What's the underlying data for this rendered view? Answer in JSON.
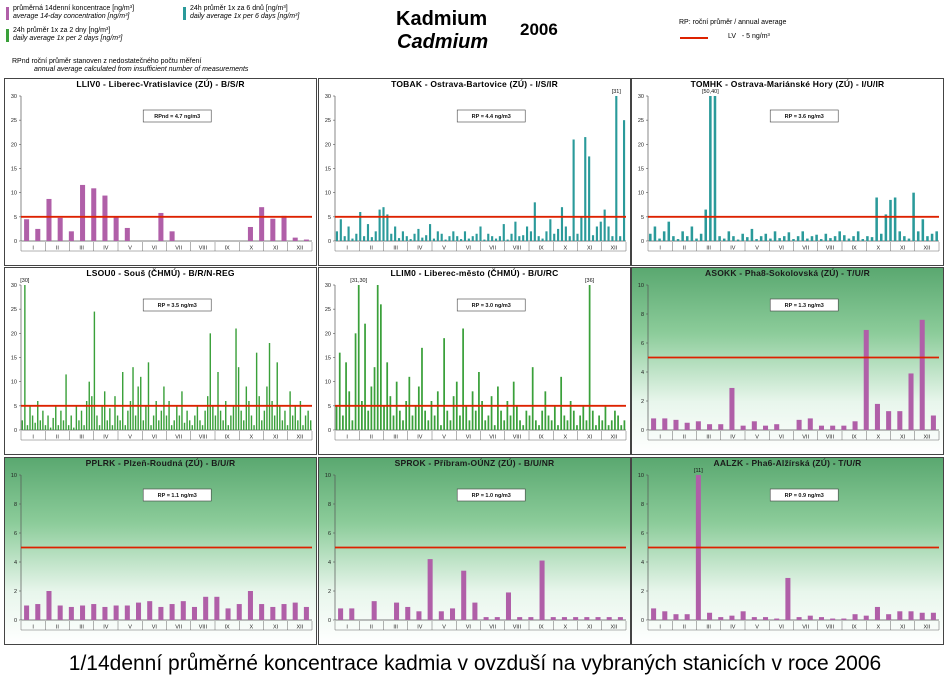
{
  "header": {
    "legend_bar_line1": "průměrná 14denní koncentrace [ng/m³]",
    "legend_bar_line2": "average 14-day concentration [ng/m³]",
    "legend_green_line1": "24h průměr 1x za 2 dny [ng/m³]",
    "legend_green_line2": "daily average 1x per 2 days [ng/m³]",
    "legend_teal_line1": "24h průměr 1x za 6 dnů [ng/m³]",
    "legend_teal_line2": "daily average 1x per 6 days [ng/m³]",
    "title_cz": "Kadmium",
    "title_en": "Cadmium",
    "year": "2006",
    "rp_label": "RP: roční průměr / annual average",
    "lv_label": "LV   - 5 ng/m³",
    "rpnd_line1": "RPnd  roční průměr stanoven z nedostatečného počtu měření",
    "rpnd_line2": "annual average calculated from insufficient number of measurements",
    "colors": {
      "bar": "#b05fa8",
      "daily_green": "#3aa03a",
      "daily_teal": "#2a9a9a",
      "limit": "#dd2200"
    }
  },
  "caption": "1/14denní průměrné koncentrace kadmia v ovzduší na vybraných stanicích v roce 2006",
  "chart_data": [
    {
      "type": "bar",
      "title": "LLIV0 - Liberec-Vratislavice (ZÚ) - B/S/R",
      "annotation": "RPnd = 4.7 ng/m3",
      "limit": 5,
      "ylim": [
        0,
        30
      ],
      "yticks": [
        0,
        5,
        10,
        15,
        20,
        25,
        30
      ],
      "months": [
        "I",
        "II",
        "III",
        "IV",
        "V",
        "VI",
        "VII",
        "VIII",
        "IX",
        "X",
        "XI",
        "XII"
      ],
      "values": [
        4.5,
        2.5,
        8.7,
        4.8,
        2.0,
        11.6,
        10.9,
        9.4,
        4.9,
        2.7,
        0,
        0,
        5.8,
        2.0,
        0,
        0,
        0,
        0,
        0,
        0,
        2.9,
        7.0,
        4.6,
        5.2,
        0.7,
        0.3
      ],
      "color": "#b05fa8",
      "green_bg": false
    },
    {
      "type": "bar",
      "title": "TOBAK - Ostrava-Bartovice (ZÚ) - I/S/IR",
      "annotation": "RP = 4.4 ng/m3",
      "limit": 5,
      "ylim": [
        0,
        30
      ],
      "yticks": [
        0,
        5,
        10,
        15,
        20,
        25,
        30
      ],
      "months": [
        "I",
        "II",
        "III",
        "IV",
        "V",
        "VI",
        "VII",
        "VIII",
        "IX",
        "X",
        "XI",
        "XII"
      ],
      "values": [
        2,
        4.5,
        1,
        3,
        0.5,
        1.5,
        6,
        1,
        3.5,
        0.8,
        2,
        6.5,
        7,
        5.5,
        1.5,
        3,
        0.6,
        2,
        1,
        0.4,
        1.5,
        2.5,
        0.7,
        1.2,
        3.5,
        0.5,
        2,
        1.5,
        0.3,
        1,
        2,
        1,
        0.4,
        2,
        0.5,
        1,
        1.5,
        3,
        0.3,
        1.5,
        1,
        0.5,
        1,
        3.5,
        0.3,
        1.5,
        4,
        1,
        1.2,
        3,
        2,
        8,
        1,
        0.5,
        2,
        4.5,
        1.5,
        2.5,
        7,
        3,
        1,
        21,
        1.5,
        5,
        21.5,
        17.5,
        1.2,
        3,
        4,
        6.5,
        3,
        1,
        30,
        1,
        25
      ],
      "peak_label": "[31]",
      "color": "#2a9a9a",
      "green_bg": false
    },
    {
      "type": "bar",
      "title": "TOMHK - Ostrava-Mariánské Hory (ZÚ) - I/U/IR",
      "annotation": "RP = 3.6 ng/m3",
      "limit": 5,
      "ylim": [
        0,
        30
      ],
      "yticks": [
        0,
        5,
        10,
        15,
        20,
        25,
        30
      ],
      "months": [
        "I",
        "II",
        "III",
        "IV",
        "V",
        "VI",
        "VII",
        "VIII",
        "IX",
        "X",
        "XI",
        "XII"
      ],
      "values": [
        1.5,
        3,
        0.5,
        2,
        4,
        1,
        0.4,
        2,
        1,
        3,
        0.5,
        1.5,
        6.5,
        30,
        30,
        1,
        0.5,
        2,
        1,
        0.3,
        1.5,
        0.8,
        2.5,
        0.4,
        1,
        1.5,
        0.5,
        2,
        0.6,
        1,
        1.8,
        0.4,
        1,
        2,
        0.5,
        1,
        1.3,
        0.4,
        1.5,
        0.6,
        1,
        2,
        1.2,
        0.5,
        1,
        2,
        0.4,
        1,
        0.8,
        9,
        1.5,
        5.5,
        8.5,
        9,
        2,
        1,
        0.5,
        10,
        2,
        4.5,
        1,
        1.5,
        2
      ],
      "peak_label": "[50,40]",
      "color": "#2a9a9a",
      "green_bg": false
    },
    {
      "type": "bar",
      "title": "LSOU0 - Souš (ČHMÚ) - B/R/N-REG",
      "annotation": "RP = 3.5 ng/m3",
      "limit": 5,
      "ylim": [
        0,
        30
      ],
      "yticks": [
        0,
        5,
        10,
        15,
        20,
        25,
        30
      ],
      "months": [
        "I",
        "II",
        "III",
        "IV",
        "V",
        "VI",
        "VII",
        "VIII",
        "IX",
        "X",
        "XI",
        "XII"
      ],
      "values": [
        2,
        30,
        1,
        5,
        3,
        1.5,
        6,
        2,
        4,
        1,
        3,
        0.5,
        2.5,
        5,
        1,
        4,
        2,
        11.5,
        1,
        3,
        0.5,
        5,
        2,
        4,
        1,
        6,
        10,
        7,
        24.5,
        3,
        1,
        5,
        8,
        2,
        4.5,
        1,
        7,
        3,
        2,
        12,
        1,
        4,
        6,
        13,
        3,
        9,
        11,
        2,
        5,
        14,
        1,
        3,
        6,
        2,
        4,
        9,
        3,
        6,
        1,
        2,
        5,
        3,
        8,
        1.5,
        4,
        2,
        1,
        3,
        5,
        2,
        1,
        4,
        7,
        20,
        5,
        3,
        12,
        4,
        2,
        6,
        1,
        3,
        5,
        21,
        13,
        4,
        2,
        9,
        6,
        3,
        1,
        16,
        7,
        2,
        4,
        9,
        18,
        6,
        3,
        14,
        5,
        2,
        4,
        1,
        8,
        3,
        5,
        2,
        6,
        1,
        3,
        4,
        2
      ],
      "peak_label": "[30]",
      "color": "#3aa03a",
      "green_bg": false
    },
    {
      "type": "bar",
      "title": "LLIM0 - Liberec-město (ČHMÚ) - B/U/RC",
      "annotation": "RP = 3.0 ng/m3",
      "limit": 5,
      "ylim": [
        0,
        30
      ],
      "yticks": [
        0,
        5,
        10,
        15,
        20,
        25,
        30
      ],
      "months": [
        "I",
        "II",
        "III",
        "IV",
        "V",
        "VI",
        "VII",
        "VIII",
        "IX",
        "X",
        "XI",
        "XII"
      ],
      "values": [
        5,
        16,
        3,
        14,
        8,
        2,
        20,
        30,
        6,
        22,
        4,
        9,
        13,
        30,
        26,
        5,
        14,
        7,
        3,
        10,
        4,
        2,
        6,
        11,
        3,
        5,
        9,
        17,
        4,
        2,
        6,
        3,
        8,
        1,
        19,
        4,
        2,
        7,
        10,
        3,
        21,
        5,
        2,
        8,
        4,
        12,
        6,
        2,
        3,
        7,
        1,
        9,
        4,
        2,
        6,
        3,
        10,
        5,
        2,
        1,
        4,
        3,
        13,
        2,
        1,
        4,
        8,
        3,
        2,
        5,
        1,
        11,
        3,
        2,
        6,
        4,
        1,
        3,
        5,
        2,
        30,
        4,
        1,
        3,
        2,
        5,
        1,
        2,
        4,
        3,
        1,
        2
      ],
      "peak_label": "[31,30]",
      "peak_label2": "[36]",
      "color": "#3aa03a",
      "green_bg": false
    },
    {
      "type": "bar",
      "title": "ASOKK - Pha8-Sokolovská (ZÚ) - T/U/R",
      "annotation": "RP = 1.3 ng/m3",
      "limit": 5,
      "ylim": [
        0,
        10
      ],
      "yticks": [
        0,
        2,
        4,
        6,
        8,
        10
      ],
      "months": [
        "I",
        "II",
        "III",
        "IV",
        "V",
        "VI",
        "VII",
        "VIII",
        "IX",
        "X",
        "XI",
        "XII"
      ],
      "values": [
        0.8,
        0.8,
        0.7,
        0.5,
        0.6,
        0.4,
        0.4,
        2.9,
        0.3,
        0.6,
        0.3,
        0.4,
        0,
        0.7,
        0.8,
        0.3,
        0.3,
        0.3,
        0.6,
        6.9,
        1.8,
        1.3,
        1.3,
        3.9,
        7.6,
        1.0
      ],
      "color": "#b05fa8",
      "green_bg": true
    },
    {
      "type": "bar",
      "title": "PPLRK - Plzeň-Roudná (ZÚ) - B/U/R",
      "annotation": "RP = 1.1 ng/m3",
      "limit": 5,
      "ylim": [
        0,
        10
      ],
      "yticks": [
        0,
        2,
        4,
        6,
        8,
        10
      ],
      "months": [
        "I",
        "II",
        "III",
        "IV",
        "V",
        "VI",
        "VII",
        "VIII",
        "IX",
        "X",
        "XI",
        "XII"
      ],
      "values": [
        1.0,
        1.1,
        2.0,
        1.0,
        0.9,
        1.0,
        1.1,
        0.9,
        1.0,
        1.0,
        1.2,
        1.3,
        0.9,
        1.1,
        1.3,
        0.9,
        1.6,
        1.6,
        0.8,
        1.1,
        2.0,
        1.1,
        0.9,
        1.1,
        1.2,
        0.9
      ],
      "color": "#b05fa8",
      "green_bg": true
    },
    {
      "type": "bar",
      "title": "SPROK - Příbram-OÚNZ (ZÚ) - B/U/NR",
      "annotation": "RP = 1.0 ng/m3",
      "limit": 5,
      "ylim": [
        0,
        10
      ],
      "yticks": [
        0,
        2,
        4,
        6,
        8,
        10
      ],
      "months": [
        "I",
        "II",
        "III",
        "IV",
        "V",
        "VI",
        "VII",
        "VIII",
        "IX",
        "X",
        "XI",
        "XII"
      ],
      "values": [
        0.8,
        0.8,
        0,
        1.3,
        0,
        1.2,
        0.9,
        0.6,
        4.2,
        0.6,
        0.8,
        3.4,
        1.2,
        0.2,
        0.2,
        1.9,
        0.2,
        0.2,
        4.1,
        0.2,
        0.2,
        0.2,
        0.2,
        0.2,
        0.2,
        0.2
      ],
      "color": "#b05fa8",
      "green_bg": true
    },
    {
      "type": "bar",
      "title": "AALZK - Pha6-Alžírská (ZÚ) - T/U/R",
      "annotation": "RP = 0.9 ng/m3",
      "limit": 5,
      "ylim": [
        0,
        10
      ],
      "yticks": [
        0,
        2,
        4,
        6,
        8,
        10
      ],
      "months": [
        "I",
        "II",
        "III",
        "IV",
        "V",
        "VI",
        "VII",
        "VIII",
        "IX",
        "X",
        "XI",
        "XII"
      ],
      "values": [
        0.8,
        0.6,
        0.4,
        0.4,
        10,
        0.5,
        0.2,
        0.3,
        0.6,
        0.2,
        0.2,
        0.1,
        2.9,
        0.2,
        0.3,
        0.2,
        0.1,
        0.1,
        0.4,
        0.3,
        0.9,
        0.4,
        0.6,
        0.6,
        0.5,
        0.5
      ],
      "peak_label": "[11]",
      "color": "#b05fa8",
      "green_bg": true
    }
  ]
}
